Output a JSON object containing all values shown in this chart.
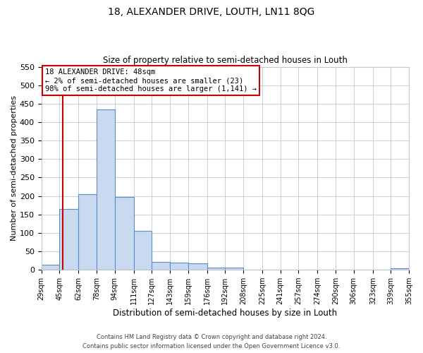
{
  "title_line1": "18, ALEXANDER DRIVE, LOUTH, LN11 8QG",
  "title_line2": "Size of property relative to semi-detached houses in Louth",
  "xlabel": "Distribution of semi-detached houses by size in Louth",
  "ylabel": "Number of semi-detached properties",
  "bin_edges": [
    29,
    45,
    62,
    78,
    94,
    111,
    127,
    143,
    159,
    176,
    192,
    208,
    225,
    241,
    257,
    274,
    290,
    306,
    323,
    339,
    355
  ],
  "bin_counts": [
    14,
    165,
    205,
    435,
    197,
    105,
    21,
    20,
    18,
    7,
    6,
    0,
    0,
    0,
    0,
    0,
    0,
    0,
    0,
    5
  ],
  "bar_color": "#c9d9f0",
  "bar_edge_color": "#5b8ec7",
  "red_line_x": 48,
  "annotation_title": "18 ALEXANDER DRIVE: 48sqm",
  "annotation_line2": "← 2% of semi-detached houses are smaller (23)",
  "annotation_line3": "98% of semi-detached houses are larger (1,141) →",
  "annotation_box_color": "#ffffff",
  "annotation_box_edge": "#cc0000",
  "red_line_color": "#cc0000",
  "ylim": [
    0,
    550
  ],
  "yticks": [
    0,
    50,
    100,
    150,
    200,
    250,
    300,
    350,
    400,
    450,
    500,
    550
  ],
  "tick_labels": [
    "29sqm",
    "45sqm",
    "62sqm",
    "78sqm",
    "94sqm",
    "111sqm",
    "127sqm",
    "143sqm",
    "159sqm",
    "176sqm",
    "192sqm",
    "208sqm",
    "225sqm",
    "241sqm",
    "257sqm",
    "274sqm",
    "290sqm",
    "306sqm",
    "323sqm",
    "339sqm",
    "355sqm"
  ],
  "footer_line1": "Contains HM Land Registry data © Crown copyright and database right 2024.",
  "footer_line2": "Contains public sector information licensed under the Open Government Licence v3.0.",
  "background_color": "#ffffff",
  "grid_color": "#c0c8d8"
}
